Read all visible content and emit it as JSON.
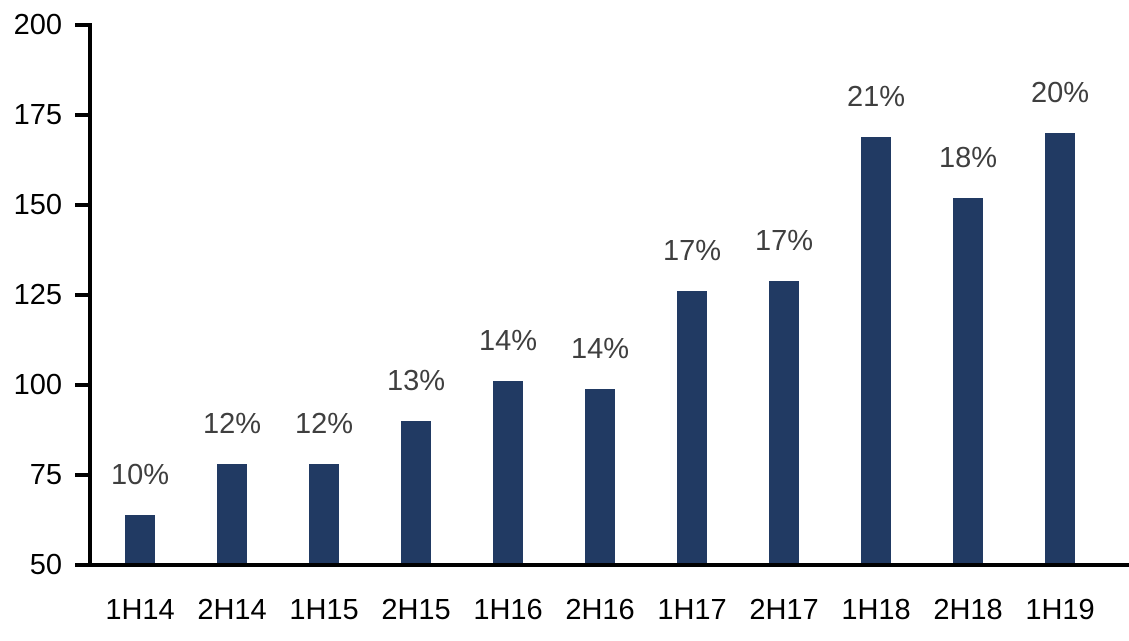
{
  "chart_data": {
    "type": "bar",
    "categories": [
      "1H14",
      "2H14",
      "1H15",
      "2H15",
      "1H16",
      "2H16",
      "1H17",
      "2H17",
      "1H18",
      "2H18",
      "1H19"
    ],
    "values": [
      64,
      78,
      78,
      90,
      101,
      99,
      126,
      129,
      169,
      152,
      170
    ],
    "bar_labels": [
      "10%",
      "12%",
      "12%",
      "13%",
      "14%",
      "14%",
      "17%",
      "17%",
      "21%",
      "18%",
      "20%"
    ],
    "title": "",
    "xlabel": "",
    "ylabel": "",
    "ylim": [
      50,
      200
    ],
    "yticks": [
      50,
      75,
      100,
      125,
      150,
      175,
      200
    ],
    "grid": false,
    "legend": false,
    "bar_color": "#213A63",
    "bar_label_color": "#3F3F3F",
    "axis_color": "#000000",
    "tick_label_color": "#000000"
  }
}
